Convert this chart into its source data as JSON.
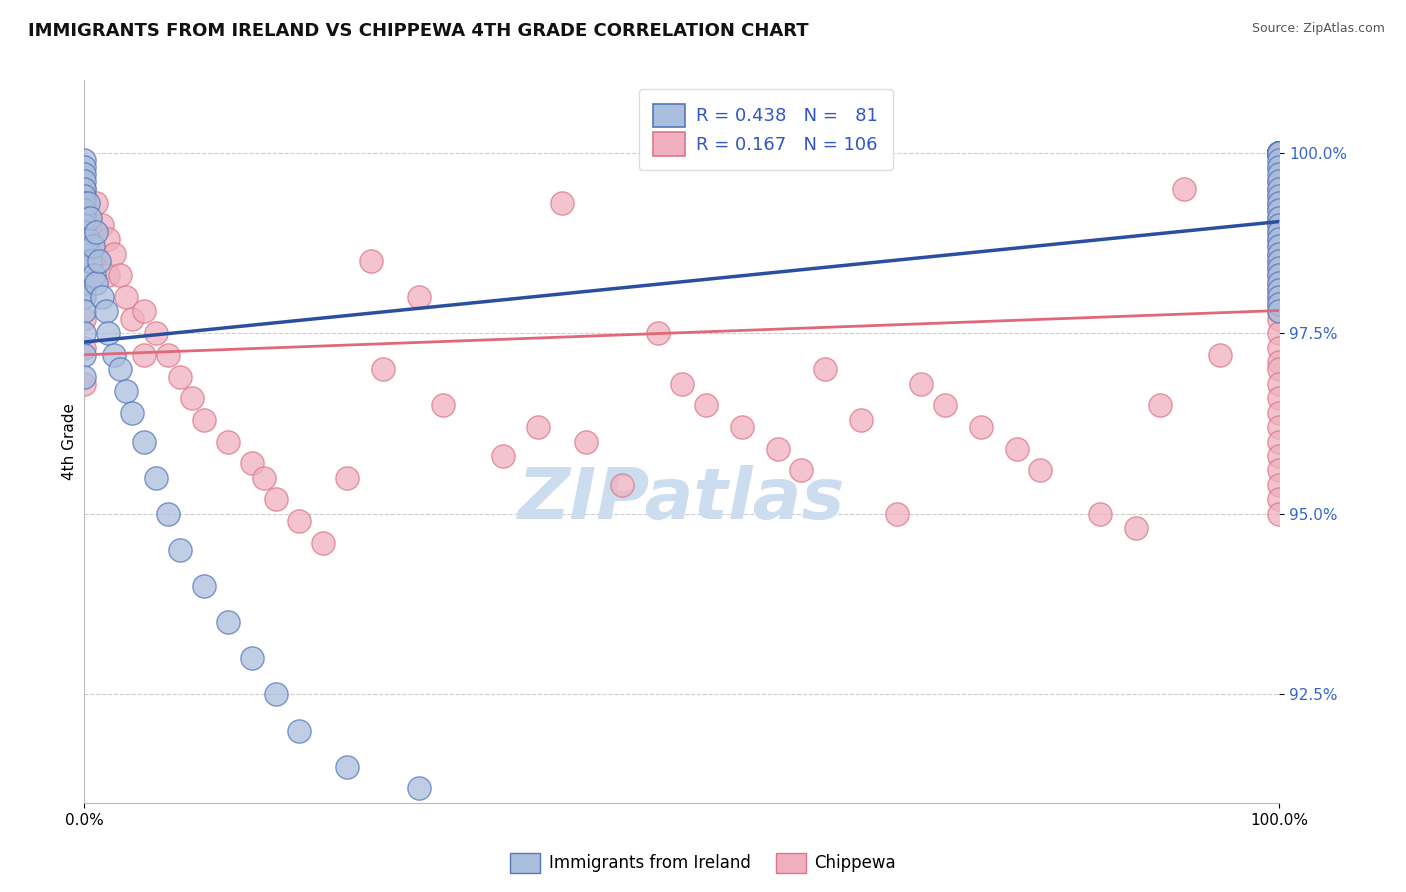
{
  "title": "IMMIGRANTS FROM IRELAND VS CHIPPEWA 4TH GRADE CORRELATION CHART",
  "source": "Source: ZipAtlas.com",
  "ylabel": "4th Grade",
  "ytick_vals": [
    92.5,
    95.0,
    97.5,
    100.0
  ],
  "ytick_labels": [
    "92.5%",
    "95.0%",
    "97.5%",
    "100.0%"
  ],
  "legend_blue_R": "0.438",
  "legend_blue_N": "81",
  "legend_pink_R": "0.167",
  "legend_pink_N": "106",
  "legend_blue_label": "Immigrants from Ireland",
  "legend_pink_label": "Chippewa",
  "blue_line_color": "#2a4fa0",
  "pink_line_color": "#e06878",
  "blue_fill_color": "#aabedd",
  "pink_fill_color": "#f0b0c0",
  "blue_edge_color": "#5577bb",
  "pink_edge_color": "#dd7788",
  "watermark_color": "#ccddf0",
  "grid_color": "#cccccc",
  "bg_color": "#ffffff",
  "xlim": [
    0,
    100
  ],
  "ylim": [
    91.0,
    101.0
  ],
  "blue_x": [
    0.0,
    0.0,
    0.0,
    0.0,
    0.0,
    0.0,
    0.0,
    0.0,
    0.0,
    0.0,
    0.0,
    0.0,
    0.0,
    0.0,
    0.0,
    0.0,
    0.0,
    0.0,
    0.0,
    0.0,
    0.3,
    0.3,
    0.5,
    0.5,
    0.7,
    0.8,
    1.0,
    1.0,
    1.2,
    1.5,
    1.8,
    2.0,
    2.5,
    3.0,
    3.5,
    4.0,
    5.0,
    6.0,
    7.0,
    8.0,
    10.0,
    12.0,
    14.0,
    16.0,
    18.0,
    22.0,
    28.0,
    100.0,
    100.0,
    100.0,
    100.0,
    100.0,
    100.0,
    100.0,
    100.0,
    100.0,
    100.0,
    100.0,
    100.0,
    100.0,
    100.0,
    100.0,
    100.0,
    100.0,
    100.0,
    100.0,
    100.0,
    100.0,
    100.0,
    100.0,
    100.0,
    100.0,
    100.0,
    100.0,
    100.0,
    100.0,
    100.0,
    100.0,
    100.0,
    100.0,
    100.0
  ],
  "blue_y": [
    99.9,
    99.8,
    99.7,
    99.6,
    99.5,
    99.4,
    99.3,
    99.2,
    99.1,
    99.0,
    98.9,
    98.8,
    98.6,
    98.4,
    98.2,
    98.0,
    97.8,
    97.5,
    97.2,
    96.9,
    99.3,
    98.8,
    99.1,
    98.5,
    98.7,
    98.3,
    98.9,
    98.2,
    98.5,
    98.0,
    97.8,
    97.5,
    97.2,
    97.0,
    96.7,
    96.4,
    96.0,
    95.5,
    95.0,
    94.5,
    94.0,
    93.5,
    93.0,
    92.5,
    92.0,
    91.5,
    91.2,
    100.0,
    100.0,
    100.0,
    100.0,
    100.0,
    100.0,
    100.0,
    100.0,
    100.0,
    100.0,
    100.0,
    100.0,
    99.9,
    99.8,
    99.7,
    99.6,
    99.5,
    99.4,
    99.3,
    99.2,
    99.1,
    99.0,
    98.9,
    98.8,
    98.7,
    98.6,
    98.5,
    98.4,
    98.3,
    98.2,
    98.1,
    98.0,
    97.9,
    97.8
  ],
  "pink_x": [
    0.0,
    0.0,
    0.0,
    0.0,
    0.0,
    0.0,
    0.0,
    0.0,
    0.5,
    1.0,
    1.0,
    1.5,
    2.0,
    2.0,
    2.5,
    3.0,
    3.5,
    4.0,
    5.0,
    5.0,
    6.0,
    7.0,
    8.0,
    9.0,
    10.0,
    12.0,
    14.0,
    15.0,
    16.0,
    18.0,
    20.0,
    22.0,
    24.0,
    25.0,
    28.0,
    30.0,
    35.0,
    38.0,
    40.0,
    42.0,
    45.0,
    48.0,
    50.0,
    52.0,
    55.0,
    58.0,
    60.0,
    62.0,
    65.0,
    68.0,
    70.0,
    72.0,
    75.0,
    78.0,
    80.0,
    85.0,
    88.0,
    90.0,
    92.0,
    95.0,
    100.0,
    100.0,
    100.0,
    100.0,
    100.0,
    100.0,
    100.0,
    100.0,
    100.0,
    100.0,
    100.0,
    100.0,
    100.0,
    100.0,
    100.0,
    100.0,
    100.0,
    100.0,
    100.0,
    100.0,
    100.0,
    100.0,
    100.0,
    100.0,
    100.0,
    100.0,
    100.0,
    100.0,
    100.0,
    100.0,
    100.0,
    100.0,
    100.0,
    100.0,
    100.0,
    100.0,
    100.0,
    100.0,
    100.0,
    100.0,
    100.0,
    100.0,
    100.0,
    100.0,
    100.0,
    100.0
  ],
  "pink_y": [
    99.5,
    99.2,
    98.9,
    98.5,
    98.1,
    97.7,
    97.3,
    96.8,
    99.0,
    99.3,
    98.6,
    99.0,
    98.8,
    98.3,
    98.6,
    98.3,
    98.0,
    97.7,
    97.8,
    97.2,
    97.5,
    97.2,
    96.9,
    96.6,
    96.3,
    96.0,
    95.7,
    95.5,
    95.2,
    94.9,
    94.6,
    95.5,
    98.5,
    97.0,
    98.0,
    96.5,
    95.8,
    96.2,
    99.3,
    96.0,
    95.4,
    97.5,
    96.8,
    96.5,
    96.2,
    95.9,
    95.6,
    97.0,
    96.3,
    95.0,
    96.8,
    96.5,
    96.2,
    95.9,
    95.6,
    95.0,
    94.8,
    96.5,
    99.5,
    97.2,
    100.0,
    100.0,
    100.0,
    100.0,
    100.0,
    100.0,
    100.0,
    100.0,
    100.0,
    100.0,
    100.0,
    99.8,
    99.6,
    99.4,
    99.2,
    99.0,
    98.8,
    98.6,
    98.4,
    98.2,
    98.0,
    97.8,
    99.5,
    99.3,
    99.1,
    98.9,
    98.7,
    98.5,
    98.3,
    98.1,
    97.9,
    97.7,
    97.5,
    97.3,
    97.1,
    97.0,
    96.8,
    96.6,
    96.4,
    96.2,
    96.0,
    95.8,
    95.6,
    95.4,
    95.2,
    95.0
  ]
}
